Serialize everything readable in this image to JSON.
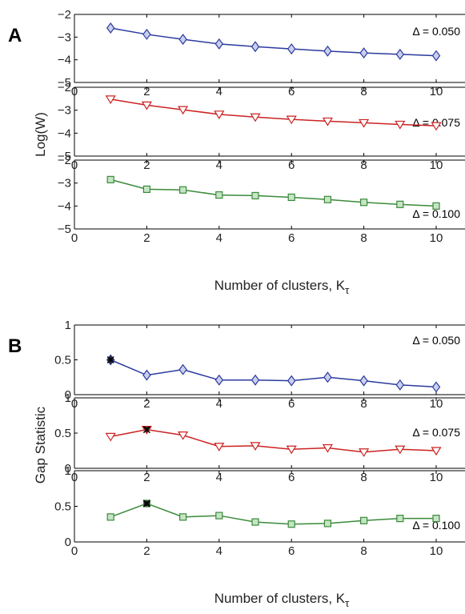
{
  "figure": {
    "panel_A": {
      "letter": "A",
      "ylabel": "Log(W)",
      "xlabel_text": "Number of clusters, K",
      "xlabel_sub": "τ"
    },
    "panel_B": {
      "letter": "B",
      "ylabel": "Gap Statistic",
      "xlabel_text": "Number of clusters, K",
      "xlabel_sub": "τ"
    }
  },
  "chart_data": [
    {
      "type": "line",
      "panel": "A",
      "annotation": "Δ = 0.050",
      "x": [
        1,
        2,
        3,
        4,
        5,
        6,
        7,
        8,
        9,
        10
      ],
      "series": [
        {
          "values": [
            -2.6,
            -2.88,
            -3.1,
            -3.3,
            -3.42,
            -3.52,
            -3.62,
            -3.7,
            -3.76,
            -3.82
          ],
          "color": "#2b3a9e",
          "marker": "diamond"
        }
      ],
      "xlim": [
        0,
        10
      ],
      "ylim": [
        -5,
        -2
      ],
      "xticks": [
        "0",
        "2",
        "4",
        "6",
        "8",
        "10"
      ],
      "yticks": [
        "−5",
        "−4",
        "−3",
        "−2"
      ]
    },
    {
      "type": "line",
      "panel": "A",
      "annotation": "Δ = 0.075",
      "x": [
        1,
        2,
        3,
        4,
        5,
        6,
        7,
        8,
        9,
        10
      ],
      "series": [
        {
          "values": [
            -2.52,
            -2.78,
            -2.98,
            -3.18,
            -3.3,
            -3.4,
            -3.48,
            -3.55,
            -3.62,
            -3.68
          ],
          "color": "#cc2222",
          "marker": "triangle-down"
        }
      ],
      "xlim": [
        0,
        10
      ],
      "ylim": [
        -5,
        -2
      ],
      "xticks": [
        "0",
        "2",
        "4",
        "6",
        "8",
        "10"
      ],
      "yticks": [
        "−5",
        "−4",
        "−3",
        "−2"
      ]
    },
    {
      "type": "line",
      "panel": "A",
      "annotation": "Δ = 0.100",
      "x": [
        1,
        2,
        3,
        4,
        5,
        6,
        7,
        8,
        9,
        10
      ],
      "series": [
        {
          "values": [
            -2.85,
            -3.27,
            -3.3,
            -3.52,
            -3.55,
            -3.62,
            -3.72,
            -3.84,
            -3.93,
            -4.0
          ],
          "color": "#3a8a3a",
          "marker": "square"
        }
      ],
      "xlim": [
        0,
        10
      ],
      "ylim": [
        -5,
        -2
      ],
      "xticks": [
        "0",
        "2",
        "4",
        "6",
        "8",
        "10"
      ],
      "yticks": [
        "−5",
        "−4",
        "−3",
        "−2"
      ]
    },
    {
      "type": "line",
      "panel": "B",
      "annotation": "Δ = 0.050",
      "x": [
        1,
        2,
        3,
        4,
        5,
        6,
        7,
        8,
        9,
        10
      ],
      "series": [
        {
          "values": [
            0.5,
            0.28,
            0.36,
            0.21,
            0.21,
            0.2,
            0.25,
            0.2,
            0.14,
            0.11
          ],
          "color": "#2b3a9e",
          "marker": "diamond"
        }
      ],
      "optimal_k": 1,
      "xlim": [
        0,
        10
      ],
      "ylim": [
        0,
        1
      ],
      "xticks": [
        "0",
        "2",
        "4",
        "6",
        "8",
        "10"
      ],
      "yticks": [
        "0",
        "0.5",
        "1"
      ]
    },
    {
      "type": "line",
      "panel": "B",
      "annotation": "Δ = 0.075",
      "x": [
        1,
        2,
        3,
        4,
        5,
        6,
        7,
        8,
        9,
        10
      ],
      "series": [
        {
          "values": [
            0.45,
            0.55,
            0.47,
            0.31,
            0.32,
            0.27,
            0.29,
            0.23,
            0.27,
            0.25
          ],
          "color": "#cc2222",
          "marker": "triangle-down"
        }
      ],
      "optimal_k": 2,
      "xlim": [
        0,
        10
      ],
      "ylim": [
        0,
        1
      ],
      "xticks": [
        "0",
        "2",
        "4",
        "6",
        "8",
        "10"
      ],
      "yticks": [
        "0",
        "0.5",
        "1"
      ]
    },
    {
      "type": "line",
      "panel": "B",
      "annotation": "Δ = 0.100",
      "x": [
        1,
        2,
        3,
        4,
        5,
        6,
        7,
        8,
        9,
        10
      ],
      "series": [
        {
          "values": [
            0.35,
            0.54,
            0.35,
            0.37,
            0.28,
            0.25,
            0.26,
            0.3,
            0.33,
            0.33
          ],
          "color": "#3a8a3a",
          "marker": "square"
        }
      ],
      "optimal_k": 2,
      "xlim": [
        0,
        10
      ],
      "ylim": [
        0,
        1
      ],
      "xticks": [
        "0",
        "2",
        "4",
        "6",
        "8",
        "10"
      ],
      "yticks": [
        "0",
        "0.5",
        "1"
      ]
    }
  ]
}
